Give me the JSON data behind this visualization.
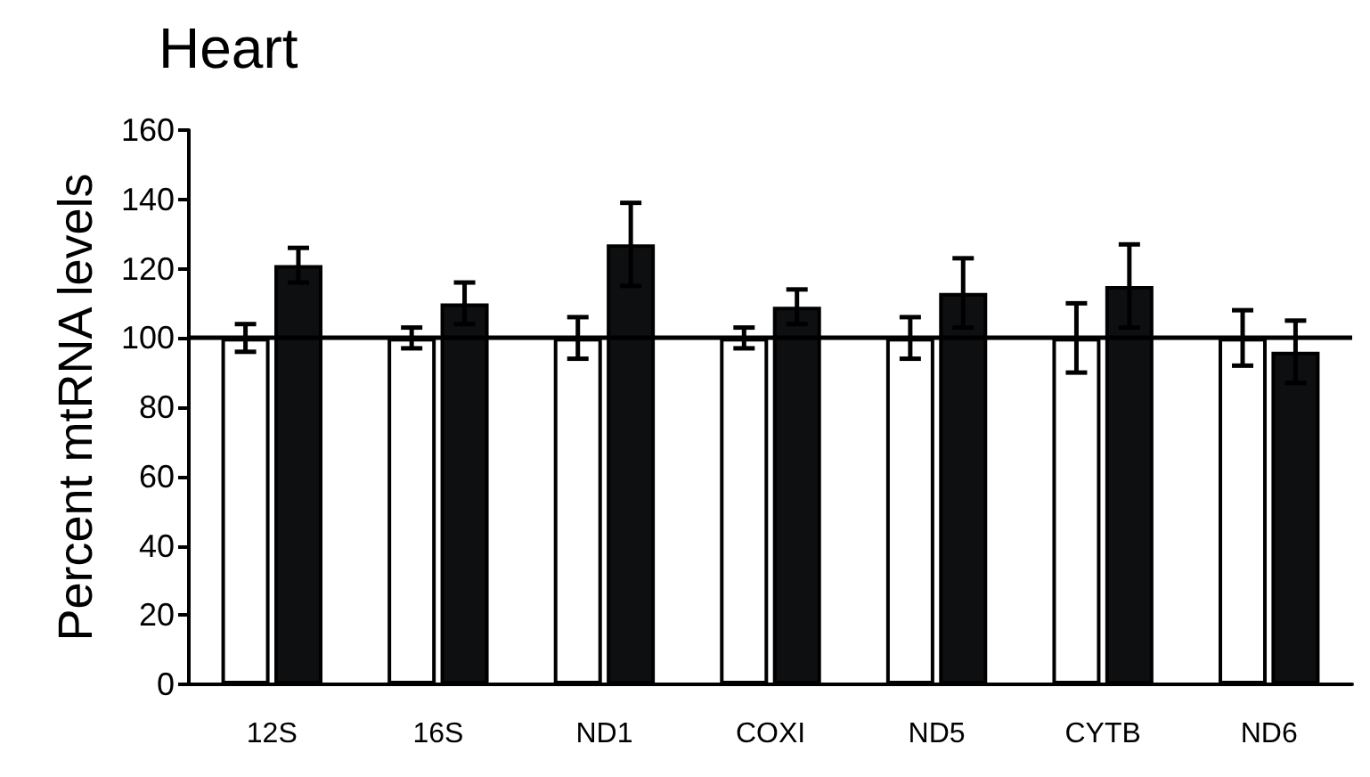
{
  "chart_data": {
    "type": "bar",
    "title": "Heart",
    "ylabel": "Percent mtRNA levels",
    "categories": [
      "12S",
      "16S",
      "ND1",
      "COXI",
      "ND5",
      "CYTB",
      "ND6"
    ],
    "series": [
      {
        "color": "#ffffff",
        "values": [
          100,
          100,
          100,
          100,
          100,
          100,
          100
        ],
        "errors": [
          4,
          3,
          6,
          3,
          6,
          10,
          8
        ]
      },
      {
        "color": "#0d0f11",
        "values": [
          121,
          110,
          127,
          109,
          113,
          115,
          96
        ],
        "errors": [
          5,
          6,
          12,
          5,
          10,
          12,
          9
        ]
      }
    ],
    "ylim": [
      0,
      160
    ],
    "yticks": [
      0,
      20,
      40,
      60,
      80,
      100,
      120,
      140,
      160
    ],
    "ref_lines": [
      {
        "axis": "y",
        "value": 100,
        "color": "#000000"
      }
    ],
    "grid": false
  }
}
